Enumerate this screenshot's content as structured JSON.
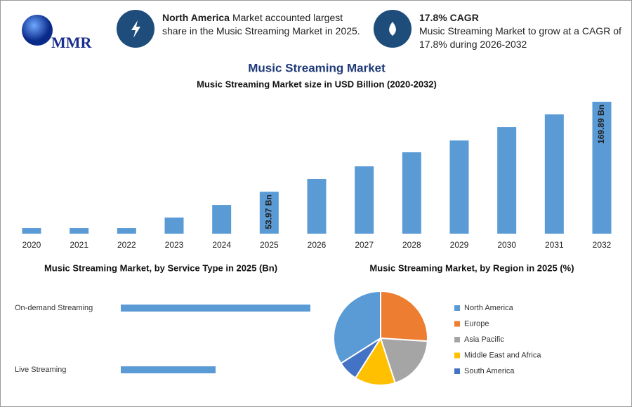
{
  "header": {
    "logo": "MMR",
    "highlights": [
      {
        "bold": "North America",
        "text": "Market accounted largest share in the Music Streaming Market in 2025."
      },
      {
        "title": "17.8% CAGR",
        "text": "Music Streaming Market to grow at a CAGR of 17.8% during 2026-2032"
      }
    ]
  },
  "chart_data": [
    {
      "type": "bar",
      "title": "Music Streaming Market",
      "subtitle": "Music Streaming Market size in USD Billion (2020-2032)",
      "categories": [
        "2020",
        "2021",
        "2022",
        "2023",
        "2024",
        "2025",
        "2026",
        "2027",
        "2028",
        "2029",
        "2030",
        "2031",
        "2032"
      ],
      "values": [
        7.2,
        7.2,
        7.2,
        20.8,
        37,
        53.97,
        70.5,
        86.7,
        104.8,
        120,
        137.3,
        153.6,
        169.89
      ],
      "value_labels": [
        null,
        null,
        null,
        null,
        null,
        "53.97 Bn",
        null,
        null,
        null,
        null,
        null,
        null,
        "169.89 Bn"
      ],
      "color": "#5b9bd5"
    },
    {
      "type": "hbar",
      "title": "Music Streaming Market, by Service Type in 2025 (Bn)",
      "categories": [
        "On-demand Streaming",
        "Live Streaming"
      ],
      "values": [
        36,
        18
      ],
      "color": "#5b9bd5"
    },
    {
      "type": "pie",
      "title": "Music Streaming Market, by Region in 2025 (%)",
      "categories": [
        "North America",
        "Europe",
        "Asia Pacific",
        "Middle East and Africa",
        "South America"
      ],
      "values": [
        34,
        26,
        19,
        14,
        7
      ],
      "colors": [
        "#5b9bd5",
        "#ed7d31",
        "#a5a5a5",
        "#ffc000",
        "#4472c4"
      ]
    }
  ]
}
